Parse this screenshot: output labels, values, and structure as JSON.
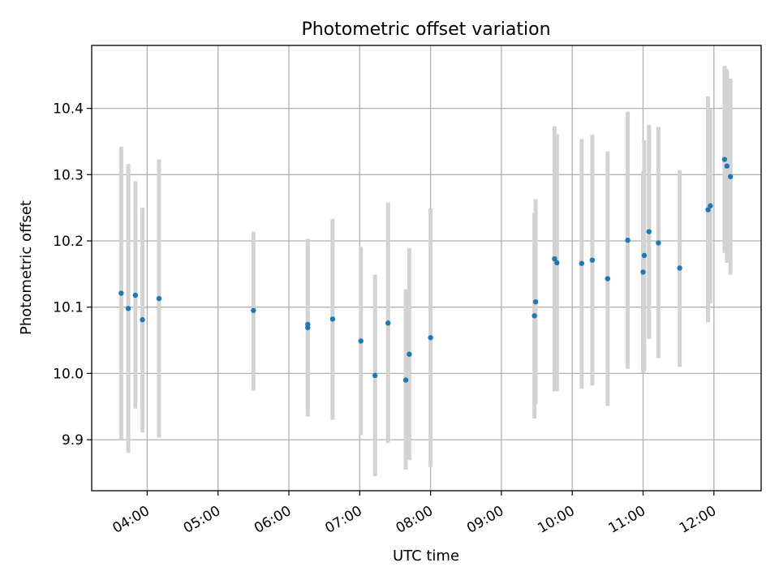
{
  "chart_data": {
    "type": "scatter",
    "title": "Photometric offset variation",
    "xlabel": "UTC time",
    "ylabel": "Photometric offset",
    "x_axis": "time",
    "xlim": [
      "03:13",
      "12:40"
    ],
    "ylim": [
      9.823,
      10.495
    ],
    "x_ticks": [
      "04:00",
      "05:00",
      "06:00",
      "07:00",
      "08:00",
      "09:00",
      "10:00",
      "11:00",
      "12:00"
    ],
    "y_ticks": [
      9.9,
      10.0,
      10.1,
      10.2,
      10.3,
      10.4
    ],
    "y_tick_labels": [
      "9.9",
      "10.0",
      "10.1",
      "10.2",
      "10.3",
      "10.4"
    ],
    "grid": true,
    "colors": {
      "marker": "#1f77b4",
      "errorbar": "#d3d3d3"
    },
    "points": [
      {
        "time": "03:38",
        "y": 10.121,
        "low": 9.9,
        "high": 10.342
      },
      {
        "time": "03:44",
        "y": 10.098,
        "low": 9.88,
        "high": 10.316
      },
      {
        "time": "03:50",
        "y": 10.118,
        "low": 9.947,
        "high": 10.29
      },
      {
        "time": "03:56",
        "y": 10.081,
        "low": 9.911,
        "high": 10.25
      },
      {
        "time": "04:10",
        "y": 10.113,
        "low": 9.903,
        "high": 10.323
      },
      {
        "time": "05:30",
        "y": 10.095,
        "low": 9.974,
        "high": 10.214
      },
      {
        "time": "06:16",
        "y": 10.069,
        "low": 9.935,
        "high": 10.203
      },
      {
        "time": "06:16",
        "y": 10.074,
        "low": 9.946,
        "high": 10.2
      },
      {
        "time": "06:37",
        "y": 10.082,
        "low": 9.93,
        "high": 10.233
      },
      {
        "time": "07:01",
        "y": 10.049,
        "low": 9.907,
        "high": 10.191
      },
      {
        "time": "07:13",
        "y": 9.997,
        "low": 9.845,
        "high": 10.149
      },
      {
        "time": "07:24",
        "y": 10.076,
        "low": 9.895,
        "high": 10.258
      },
      {
        "time": "07:39",
        "y": 9.99,
        "low": 9.855,
        "high": 10.127
      },
      {
        "time": "07:42",
        "y": 10.029,
        "low": 9.869,
        "high": 10.189
      },
      {
        "time": "08:00",
        "y": 10.054,
        "low": 9.859,
        "high": 10.249
      },
      {
        "time": "09:28",
        "y": 10.087,
        "low": 9.932,
        "high": 10.242
      },
      {
        "time": "09:29",
        "y": 10.108,
        "low": 9.953,
        "high": 10.263
      },
      {
        "time": "09:45",
        "y": 10.173,
        "low": 9.973,
        "high": 10.373
      },
      {
        "time": "09:47",
        "y": 10.167,
        "low": 9.973,
        "high": 10.361
      },
      {
        "time": "10:08",
        "y": 10.166,
        "low": 9.977,
        "high": 10.354
      },
      {
        "time": "10:17",
        "y": 10.171,
        "low": 9.982,
        "high": 10.36
      },
      {
        "time": "10:30",
        "y": 10.143,
        "low": 9.951,
        "high": 10.335
      },
      {
        "time": "10:47",
        "y": 10.201,
        "low": 10.007,
        "high": 10.395
      },
      {
        "time": "11:00",
        "y": 10.153,
        "low": 10.001,
        "high": 10.305
      },
      {
        "time": "11:01",
        "y": 10.178,
        "low": 10.004,
        "high": 10.352
      },
      {
        "time": "11:05",
        "y": 10.214,
        "low": 10.052,
        "high": 10.375
      },
      {
        "time": "11:13",
        "y": 10.197,
        "low": 10.023,
        "high": 10.372
      },
      {
        "time": "11:31",
        "y": 10.159,
        "low": 10.01,
        "high": 10.307
      },
      {
        "time": "11:55",
        "y": 10.247,
        "low": 10.077,
        "high": 10.418
      },
      {
        "time": "11:57",
        "y": 10.253,
        "low": 10.106,
        "high": 10.4
      },
      {
        "time": "12:09",
        "y": 10.323,
        "low": 10.182,
        "high": 10.464
      },
      {
        "time": "12:11",
        "y": 10.313,
        "low": 10.167,
        "high": 10.459
      },
      {
        "time": "12:14",
        "y": 10.297,
        "low": 10.149,
        "high": 10.445
      }
    ]
  }
}
